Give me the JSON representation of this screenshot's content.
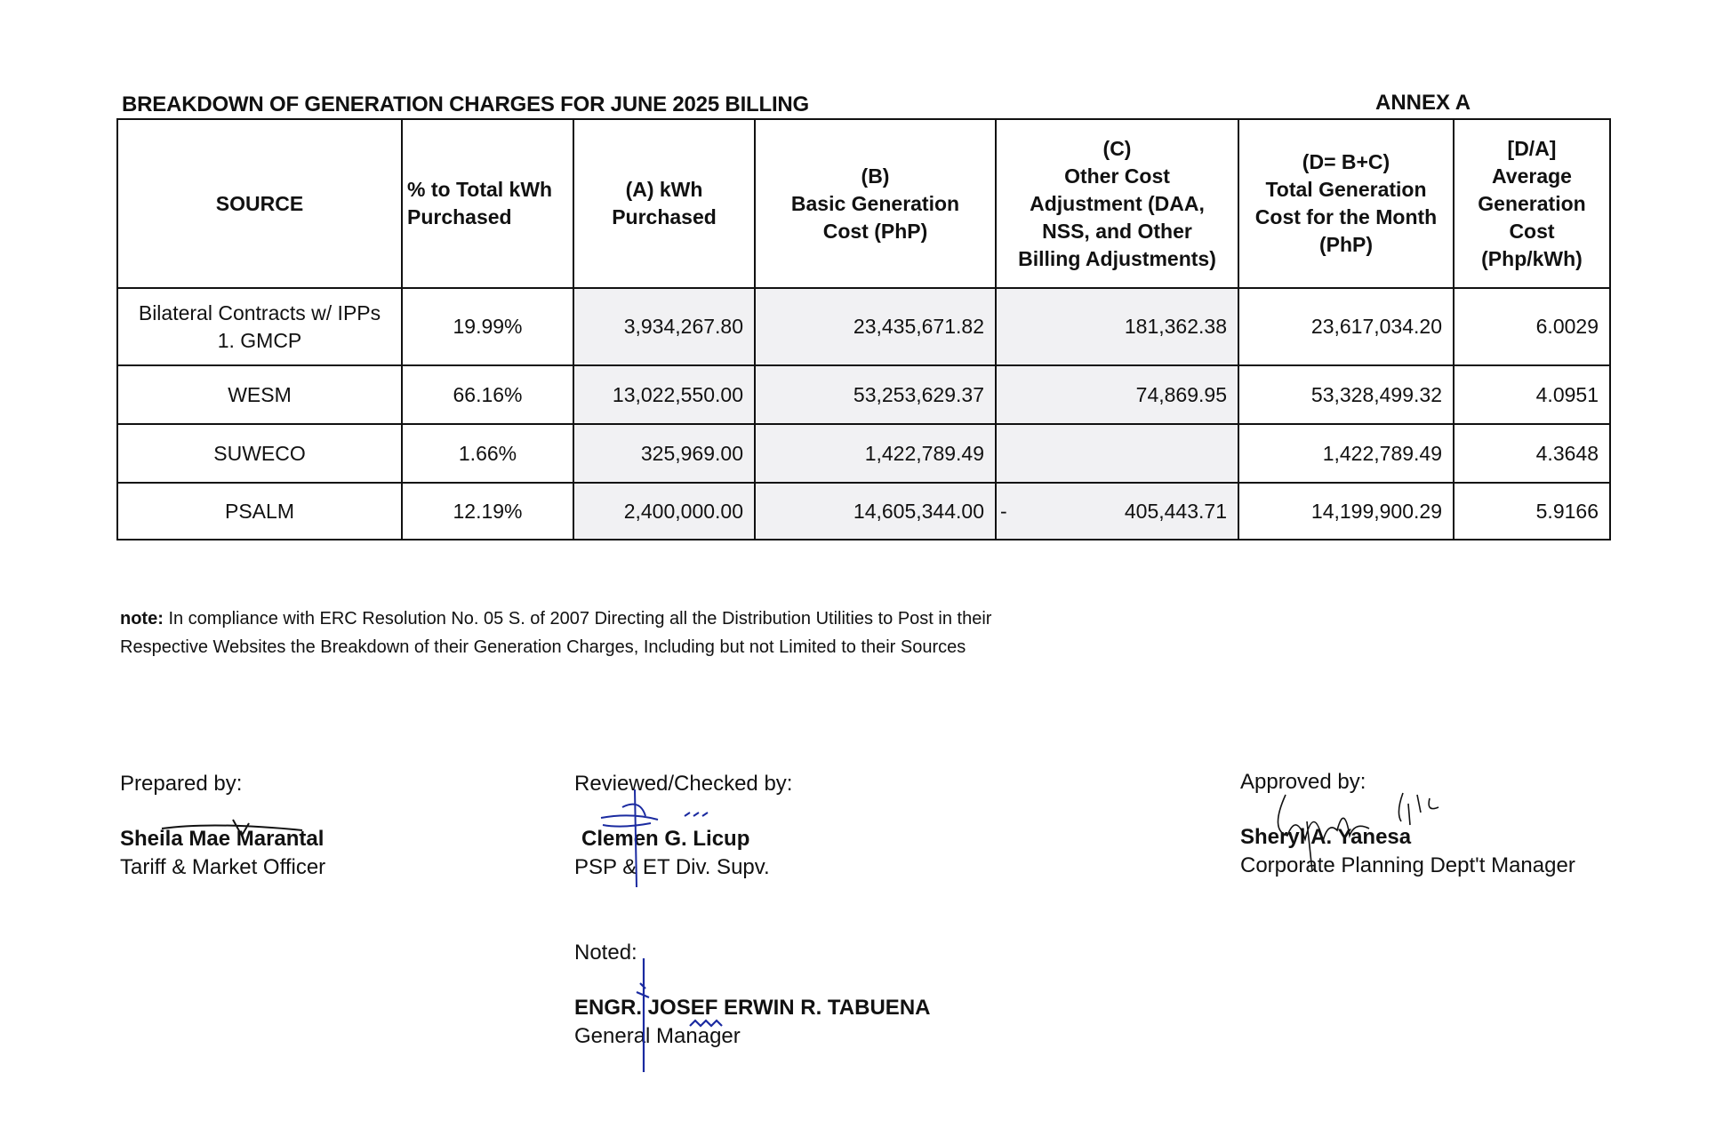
{
  "document": {
    "title": "BREAKDOWN OF GENERATION CHARGES FOR JUNE 2025 BILLING",
    "annex": "ANNEX A"
  },
  "table": {
    "headers": [
      [
        "SOURCE"
      ],
      [
        "% to Total kWh",
        "Purchased"
      ],
      [
        "(A) kWh",
        "Purchased"
      ],
      [
        "(B)",
        "Basic Generation",
        "Cost (PhP)"
      ],
      [
        "(C)",
        "Other Cost",
        "Adjustment (DAA,",
        "NSS, and Other",
        "Billing Adjustments)"
      ],
      [
        "(D= B+C)",
        "Total Generation",
        "Cost for the Month",
        "(PhP)"
      ],
      [
        "[D/A]",
        "Average",
        "Generation",
        "Cost",
        "(Php/kWh)"
      ]
    ],
    "rows": [
      {
        "source": [
          "Bilateral Contracts w/ IPPs",
          "1. GMCP"
        ],
        "pct": "19.99%",
        "kwh": "3,934,267.80",
        "basic": "23,435,671.82",
        "other_sign": "",
        "other": "181,362.38",
        "total": "23,617,034.20",
        "avg": "6.0029"
      },
      {
        "source": [
          "WESM"
        ],
        "pct": "66.16%",
        "kwh": "13,022,550.00",
        "basic": "53,253,629.37",
        "other_sign": "",
        "other": "74,869.95",
        "total": "53,328,499.32",
        "avg": "4.0951"
      },
      {
        "source": [
          "SUWECO"
        ],
        "pct": "1.66%",
        "kwh": "325,969.00",
        "basic": "1,422,789.49",
        "other_sign": "",
        "other": "",
        "total": "1,422,789.49",
        "avg": "4.3648"
      },
      {
        "source": [
          "PSALM"
        ],
        "pct": "12.19%",
        "kwh": "2,400,000.00",
        "basic": "14,605,344.00",
        "other_sign": "-",
        "other": "405,443.71",
        "total": "14,199,900.29",
        "avg": "5.9166"
      }
    ]
  },
  "note": {
    "label": "note:",
    "line1": " In compliance with ERC Resolution No. 05 S. of 2007 Directing all the Distribution Utilities to Post in their",
    "line2": "Respective Websites the Breakdown of their Generation Charges, Including but not Limited to their Sources"
  },
  "signatories": {
    "prepared": {
      "label": "Prepared by:",
      "name": "Sheila Mae Marantal",
      "position": "Tariff & Market Officer"
    },
    "reviewed": {
      "label": "Reviewed/Checked by:",
      "name": "Clemen G. Licup",
      "position": "PSP & ET Div. Supv."
    },
    "approved": {
      "label": "Approved by:",
      "name": "Sheryl A. Yanesa",
      "position": "Corporate Planning Dept't Manager"
    },
    "noted": {
      "label": "Noted:",
      "name": "ENGR. JOSEF ERWIN R. TABUENA",
      "position": "General Manager"
    }
  },
  "colors": {
    "ink": "#111111",
    "shade": "#f1f1f3",
    "signature_blue": "#1a2aa0"
  }
}
